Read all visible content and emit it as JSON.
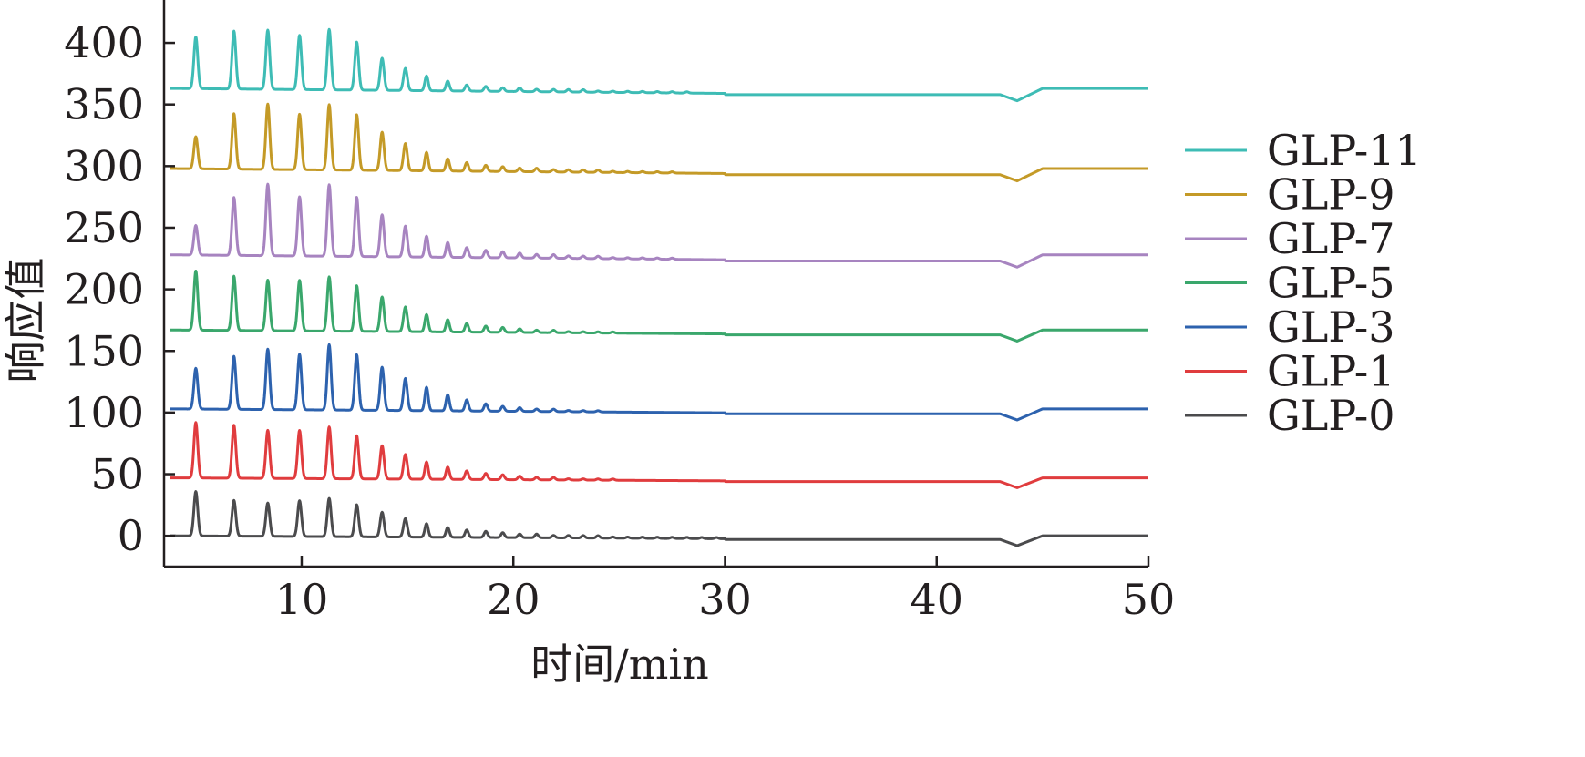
{
  "chart_data": {
    "type": "line",
    "title": "",
    "xlabel": "时间/min",
    "ylabel": "响应值",
    "xlim": [
      3.5,
      50
    ],
    "ylim": [
      -25,
      420
    ],
    "xticks": [
      10,
      20,
      30,
      40,
      50
    ],
    "yticks": [
      0,
      50,
      100,
      150,
      200,
      250,
      300,
      350,
      400
    ],
    "grid": false,
    "legend_position": "right",
    "peak_times": [
      5.0,
      6.8,
      8.4,
      9.9,
      11.3,
      12.6,
      13.8,
      14.9,
      15.9,
      16.9,
      17.8,
      18.7,
      19.5,
      20.3,
      21.1,
      21.9,
      22.6,
      23.3,
      24.0,
      24.7,
      25.4,
      26.1,
      26.8,
      27.5,
      28.2,
      28.9,
      29.6
    ],
    "baseline_dip": {
      "start": 43.0,
      "min_time": 43.8,
      "end": 45.0
    },
    "series": [
      {
        "name": "GLP-11",
        "color": "#3ebcb5",
        "baseline": 363,
        "end_baseline": 358,
        "dip": 5,
        "peaks": [
          405,
          410,
          411,
          407,
          412,
          402,
          389,
          381,
          375,
          371,
          368,
          367,
          366,
          366,
          365,
          365,
          365,
          365,
          364,
          364,
          364,
          364,
          364,
          364,
          364,
          363,
          363
        ]
      },
      {
        "name": "GLP-9",
        "color": "#c49a27",
        "baseline": 298,
        "end_baseline": 293,
        "dip": 5,
        "peaks": [
          324,
          343,
          351,
          343,
          351,
          343,
          329,
          320,
          313,
          308,
          305,
          303,
          302,
          301,
          301,
          300,
          300,
          300,
          300,
          299,
          299,
          299,
          299,
          299,
          298,
          298,
          298
        ]
      },
      {
        "name": "GLP-7",
        "color": "#a784c0",
        "baseline": 228,
        "end_baseline": 223,
        "dip": 5,
        "peaks": [
          252,
          275,
          286,
          276,
          286,
          276,
          262,
          253,
          245,
          240,
          236,
          234,
          233,
          232,
          231,
          231,
          230,
          230,
          230,
          229,
          229,
          229,
          229,
          229,
          228,
          228,
          228
        ]
      },
      {
        "name": "GLP-5",
        "color": "#3aa76c",
        "baseline": 167,
        "end_baseline": 163,
        "dip": 5,
        "peaks": [
          215,
          211,
          208,
          208,
          211,
          204,
          195,
          187,
          181,
          177,
          174,
          172,
          171,
          170,
          169,
          169,
          168,
          168,
          168,
          168,
          167,
          167,
          167,
          167,
          167,
          167,
          167
        ]
      },
      {
        "name": "GLP-3",
        "color": "#2d62ae",
        "baseline": 103,
        "end_baseline": 99,
        "dip": 5,
        "peaks": [
          136,
          146,
          152,
          148,
          156,
          148,
          138,
          129,
          122,
          116,
          112,
          109,
          107,
          106,
          105,
          105,
          104,
          104,
          104,
          103,
          103,
          103,
          103,
          103,
          103,
          103,
          103
        ]
      },
      {
        "name": "GLP-1",
        "color": "#e03c3e",
        "baseline": 47,
        "end_baseline": 44,
        "dip": 5,
        "peaks": [
          92,
          90,
          86,
          86,
          89,
          82,
          74,
          67,
          61,
          57,
          54,
          52,
          51,
          50,
          49,
          49,
          48,
          48,
          48,
          48,
          47,
          47,
          47,
          47,
          47,
          47,
          47
        ]
      },
      {
        "name": "GLP-0",
        "color": "#4b4b4d",
        "baseline": 0,
        "end_baseline": -3,
        "dip": 5,
        "peaks": [
          36,
          29,
          27,
          29,
          31,
          26,
          20,
          15,
          11,
          8,
          6,
          5,
          4,
          3,
          3,
          2,
          2,
          2,
          2,
          1,
          1,
          1,
          1,
          1,
          1,
          1,
          1
        ]
      }
    ]
  }
}
